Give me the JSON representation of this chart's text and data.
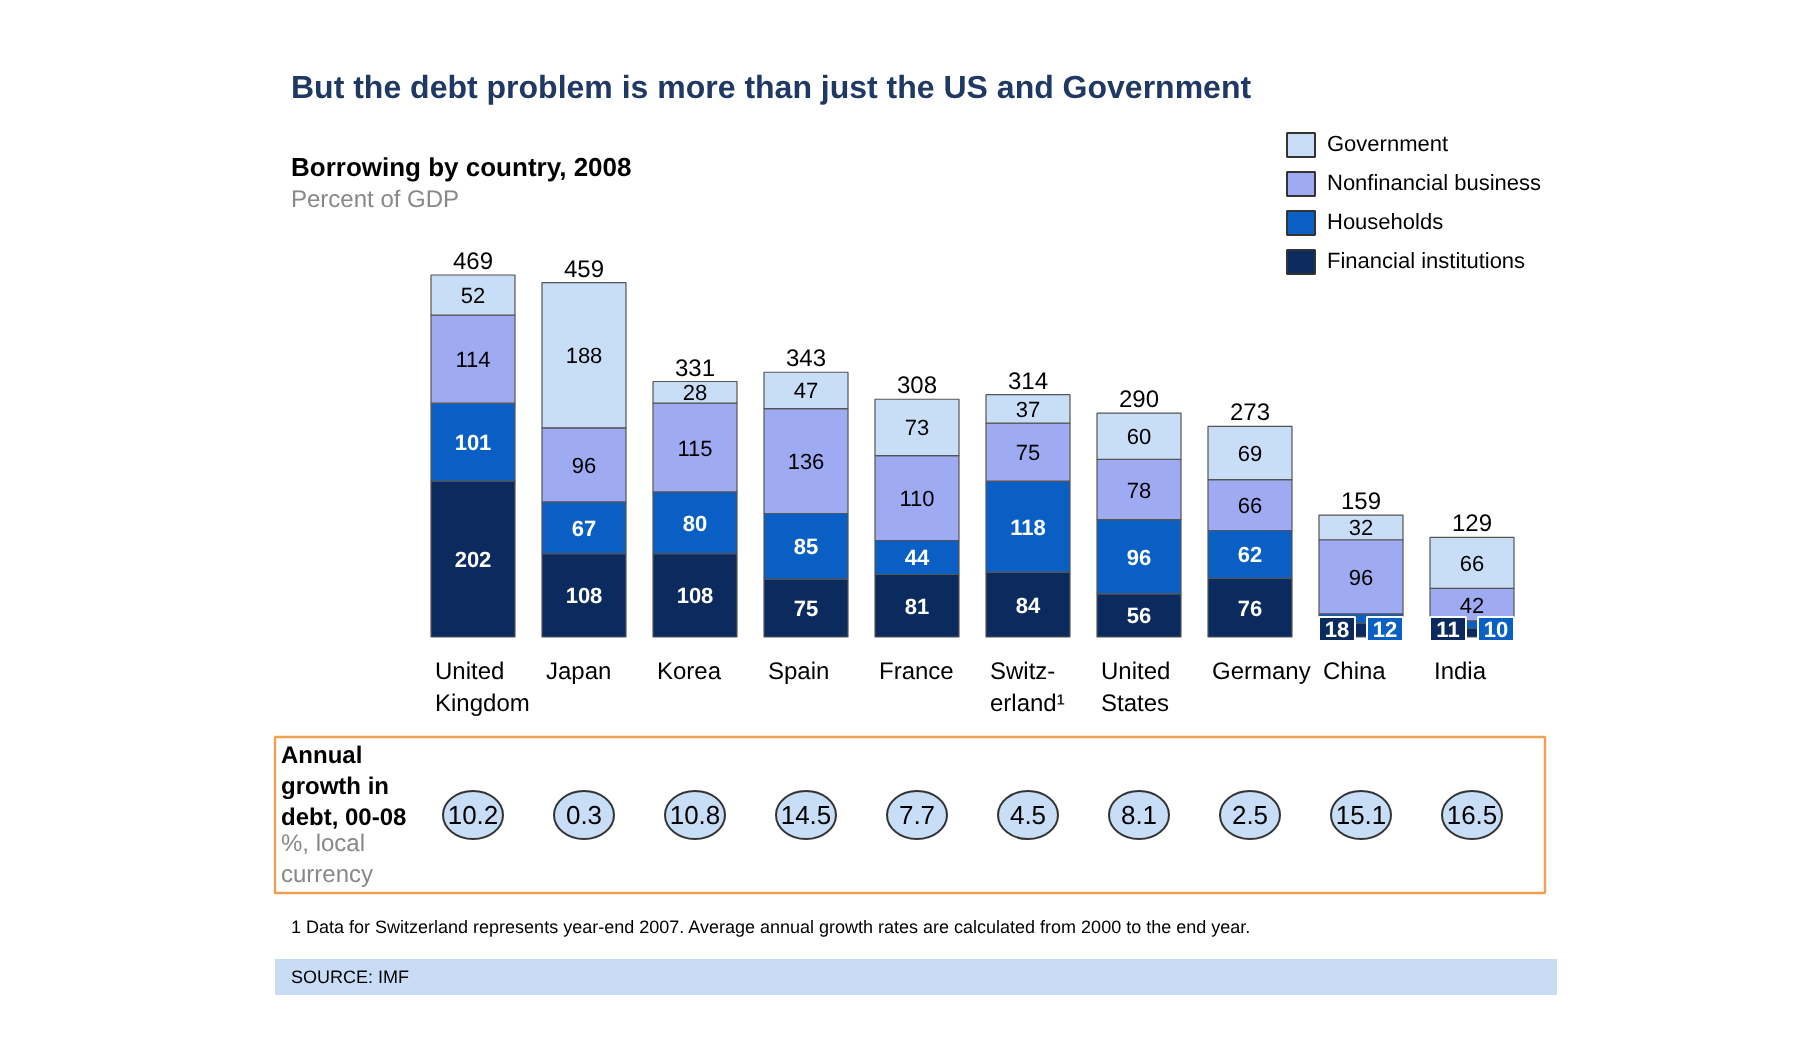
{
  "chart_data": {
    "type": "bar",
    "stacked": true,
    "data_labels": true,
    "grid": false,
    "legend": "top right",
    "title": "But the debt problem is more than just the US and Government",
    "subtitle": "Borrowing by country, 2008",
    "ylabel": "Percent of GDP",
    "categories": [
      "United\nKingdom",
      "Japan",
      "Korea",
      "Spain",
      "France",
      "Switz-\nerland¹",
      "United\nStates",
      "Germany",
      "China",
      "India"
    ],
    "series": [
      {
        "name": "Financial institutions",
        "color": "#0b2a5e",
        "values": [
          202,
          108,
          108,
          75,
          81,
          84,
          56,
          76,
          18,
          11
        ]
      },
      {
        "name": "Households",
        "color": "#0a5fc4",
        "values": [
          101,
          67,
          80,
          85,
          44,
          118,
          96,
          62,
          12,
          10
        ]
      },
      {
        "name": "Nonfinancial business",
        "color": "#9eabf2",
        "values": [
          114,
          96,
          115,
          136,
          110,
          75,
          78,
          66,
          96,
          42
        ]
      },
      {
        "name": "Government",
        "color": "#c8ddf6",
        "values": [
          52,
          188,
          28,
          47,
          73,
          37,
          60,
          69,
          32,
          66
        ]
      }
    ],
    "totals": [
      "469",
      "459",
      "331",
      "343",
      "308",
      "314",
      "290",
      "273",
      "159",
      "129"
    ],
    "annotations": [
      "Annual growth in debt, 00-08",
      "%, local currency",
      "10.2",
      "0.3",
      "10.8",
      "14.5",
      "7.7",
      "4.5",
      "8.1",
      "2.5",
      "15.1",
      "16.5",
      "1 Data for Switzerland represents year-end 2007. Average annual growth rates are calculated from 2000 to the end year.",
      "SOURCE: IMF"
    ]
  }
}
